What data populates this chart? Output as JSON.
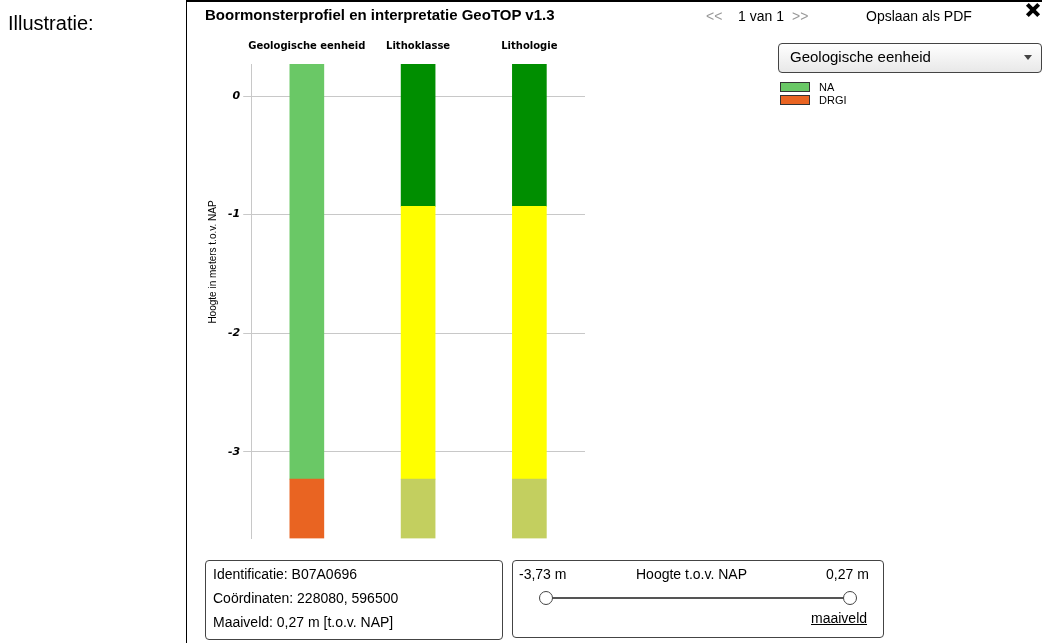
{
  "chart_data": {
    "type": "bar",
    "title": "Boormonsterprofiel en interpretatie GeoTOP v1.3",
    "ylabel": "Hoogte in meters t.o.v. NAP",
    "categories": [
      "Geologische eenheid",
      "Lithoklasse",
      "Lithologie"
    ],
    "series": [
      {
        "name": "DRGI",
        "color": "#e96422",
        "values": [
          0.5,
          null,
          null
        ],
        "base": [
          -3.73,
          null,
          null
        ]
      },
      {
        "color": "#c3cf5f",
        "values": [
          null,
          0.5,
          0.5
        ],
        "base": [
          null,
          -3.73,
          -3.73
        ]
      },
      {
        "name": "NA",
        "color": "#6ac866",
        "values": [
          3.5,
          null,
          null
        ],
        "base": [
          -3.23,
          null,
          null
        ]
      },
      {
        "color": "#ffff00",
        "values": [
          null,
          2.3,
          2.3
        ],
        "base": [
          null,
          -3.23,
          -3.23
        ]
      },
      {
        "color": "#008e00",
        "values": [
          null,
          1.2,
          1.2
        ],
        "base": [
          null,
          -0.93,
          -0.93
        ]
      }
    ],
    "ylim": [
      -3.73,
      0.27
    ],
    "yticks": [
      0,
      -1,
      -2,
      -3
    ],
    "grid": "y",
    "legend": "top right",
    "annotations": [
      "Illustratie:",
      "<<",
      "1 van 1",
      ">>",
      "Opslaan als PDF",
      "Geologische eenheid",
      "Identificatie: B07A0696",
      "Coördinaten: 228080, 596500",
      "Maaiveld: 0,27 m [t.o.v. NAP]",
      "-3,73 m",
      "Hoogte t.o.v. NAP",
      "0,27 m",
      "maaiveld"
    ]
  }
}
